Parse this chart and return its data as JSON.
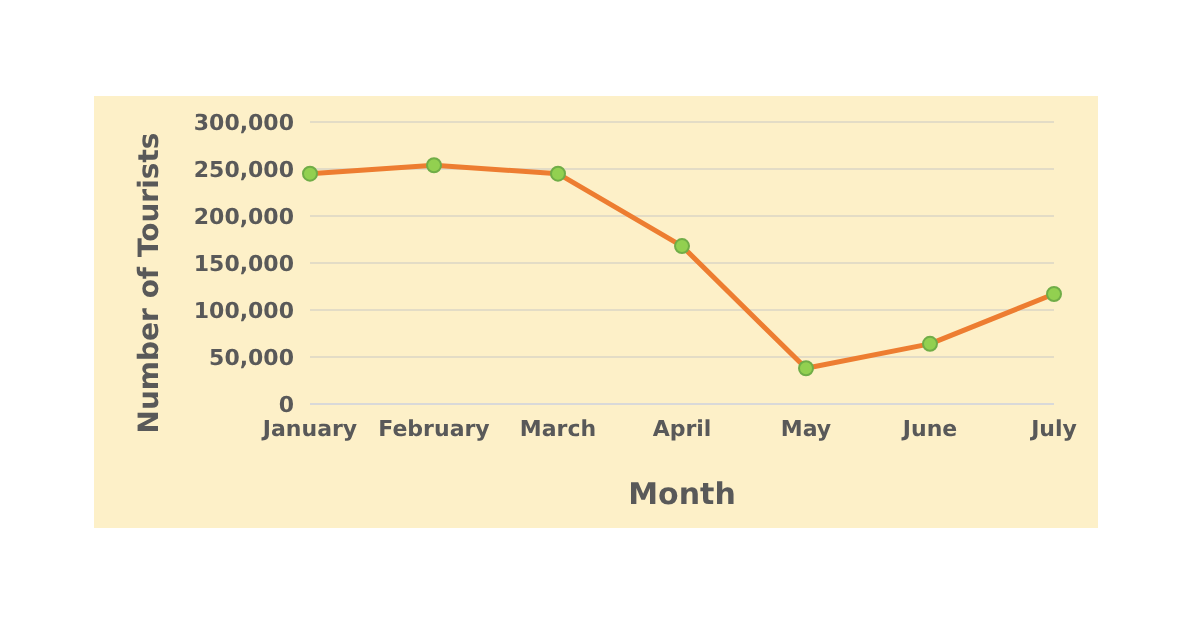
{
  "chart_data": {
    "type": "line",
    "xlabel": "Month",
    "ylabel": "Number of Tourists",
    "categories": [
      "January",
      "February",
      "March",
      "April",
      "May",
      "June",
      "July"
    ],
    "series": [
      {
        "color": "#ed7d31",
        "values": [
          245000,
          254000,
          245000,
          168000,
          38000,
          64000,
          117000
        ]
      }
    ],
    "ylim": [
      0,
      300000
    ],
    "yticks": [
      {
        "value": 0,
        "label": "0"
      },
      {
        "value": 50000,
        "label": "50,000"
      },
      {
        "value": 100000,
        "label": "100,000"
      },
      {
        "value": 150000,
        "label": "150,000"
      },
      {
        "value": 200000,
        "label": "200,000"
      },
      {
        "value": 250000,
        "label": "250,000"
      },
      {
        "value": 300000,
        "label": "300,000"
      }
    ],
    "grid": "y",
    "marker": "circle",
    "line_style": "solid",
    "legend": false
  }
}
